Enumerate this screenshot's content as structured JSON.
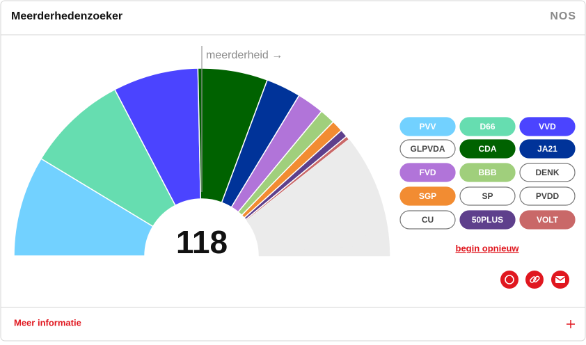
{
  "header": {
    "title": "Meerderhedenzoeker",
    "logo": "NOS"
  },
  "chart_data": {
    "type": "half-donut",
    "annotation": "meerderheid →",
    "majority_threshold": 75,
    "total": 118,
    "categories": [
      "PVV",
      "D66",
      "VVD",
      "GLPVDA",
      "CDA",
      "JA21",
      "FVD",
      "BBB",
      "DENK",
      "SGP",
      "SP",
      "PVDD",
      "CU",
      "50PLUS",
      "VOLT"
    ],
    "values": [
      26,
      26,
      22,
      20,
      18,
      9,
      7,
      4,
      3,
      3,
      3,
      3,
      3,
      2,
      1
    ],
    "selected": [
      true,
      true,
      true,
      false,
      true,
      true,
      true,
      true,
      false,
      true,
      false,
      false,
      false,
      true,
      true
    ],
    "colors": [
      "#72d1ff",
      "#66ddb0",
      "#4b44ff",
      "#ebebeb",
      "#006200",
      "#003399",
      "#b174d9",
      "#a0cf7c",
      "#ebebeb",
      "#f28c32",
      "#ebebeb",
      "#ebebeb",
      "#ebebeb",
      "#5e3f8c",
      "#c96868"
    ]
  },
  "actions": {
    "reset": "begin opnieuw"
  },
  "footer": {
    "more_info": "Meer informatie"
  }
}
